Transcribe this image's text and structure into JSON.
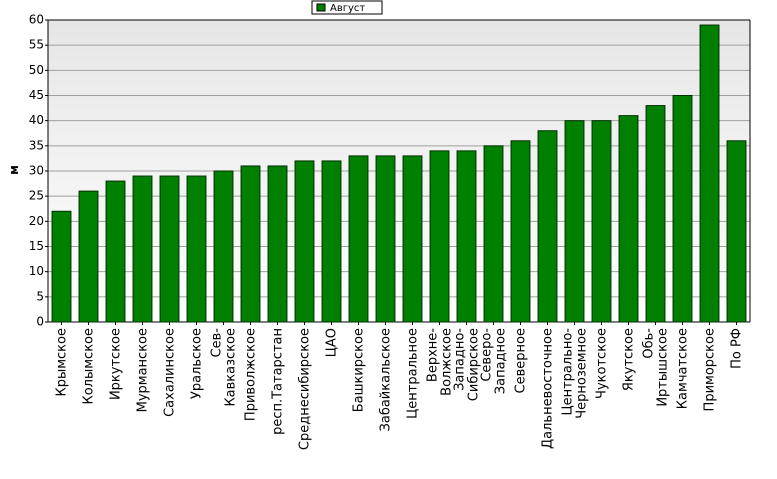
{
  "chart_data": {
    "type": "bar",
    "y_label": "м",
    "legend": "top",
    "series": [
      {
        "name": "Август",
        "color": "#008000",
        "values": [
          22,
          26,
          28,
          29,
          29,
          29,
          30,
          31,
          31,
          32,
          32,
          33,
          33,
          33,
          34,
          34,
          35,
          36,
          38,
          40,
          40,
          41,
          43,
          45,
          59,
          36
        ]
      }
    ],
    "categories": [
      "Крымское",
      "Колымское",
      "Иркутское",
      "Мурманское",
      "Сахалинское",
      "Уральское",
      "Сев-Кавказское",
      "Приволжское",
      "респ.Татарстан",
      "Среднесибирское",
      "ЦАО",
      "Башкирское",
      "Забайкальское",
      "Центральное",
      "Верхне-Волжское",
      "Западно-Сибирское",
      "Северо-Западное",
      "Северное",
      "Дальневосточное",
      "Центрально-Черноземное",
      "Чукотское",
      "Якутское",
      "Обь-Иртышское",
      "Камчатское",
      "Приморское",
      "По РФ"
    ],
    "ylim": [
      0,
      60
    ],
    "yticks": [
      0,
      5,
      10,
      15,
      20,
      25,
      30,
      35,
      40,
      45,
      50,
      55,
      60
    ],
    "grid": true
  }
}
